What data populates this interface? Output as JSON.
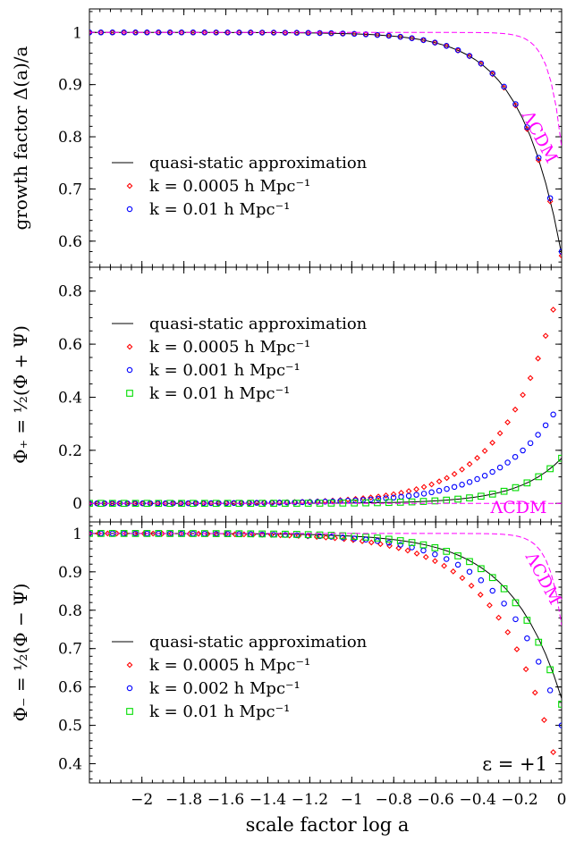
{
  "chart_data": [
    {
      "type": "scatter",
      "panel": "top",
      "ylabel": "growth factor Δ(a)/a",
      "xlim": [
        -2.25,
        0
      ],
      "ylim": [
        0.55,
        1.045
      ],
      "yticks": [
        0.6,
        0.7,
        0.8,
        0.9,
        1
      ],
      "ytick_labels": [
        "0.6",
        "0.7",
        "0.8",
        "0.9",
        "1"
      ],
      "annotation": "ΛCDM",
      "legend": {
        "placement": "lower-left",
        "entries": [
          "quasi-static approximation",
          "k = 0.0005 h Mpc⁻¹",
          "k = 0.01 h Mpc⁻¹"
        ]
      },
      "series": [
        {
          "name": "quasi-static approximation",
          "style": "line",
          "color": "#000000",
          "x0": -2.25,
          "x1": 0,
          "n": 61,
          "v0": 1.0,
          "v1": 0.575,
          "s": 0.22,
          "p": 1.12
        },
        {
          "name": "k = 0.0005 h Mpc⁻¹",
          "style": "diamond",
          "color": "#ff0000",
          "x0": -2.25,
          "x1": 0,
          "n": 42,
          "v0": 1.0,
          "v1": 0.572,
          "s": 0.22,
          "p": 1.12
        },
        {
          "name": "k = 0.01 h Mpc⁻¹",
          "style": "circle",
          "color": "#0000ff",
          "x0": -2.25,
          "x1": 0,
          "n": 42,
          "v0": 1.0,
          "v1": 0.58,
          "s": 0.22,
          "p": 1.12
        },
        {
          "name": "ΛCDM",
          "style": "dashed",
          "color": "#ff00ff",
          "x0": -2.25,
          "x1": 0,
          "n": 90,
          "v0": 1.0,
          "v1": 0.78,
          "s": 0.075,
          "p": 1.25
        }
      ]
    },
    {
      "type": "scatter",
      "panel": "middle",
      "ylabel": "Φ₊ = ½(Φ + Ψ)",
      "xlim": [
        -2.25,
        0
      ],
      "ylim": [
        -0.07,
        0.89
      ],
      "yticks": [
        0,
        0.2,
        0.4,
        0.6,
        0.8
      ],
      "ytick_labels": [
        "0",
        "0.2",
        "0.4",
        "0.6",
        "0.8"
      ],
      "annotation": "ΛCDM",
      "legend": {
        "placement": "upper-left",
        "entries": [
          "quasi-static approximation",
          "k = 0.0005 h Mpc⁻¹",
          "k = 0.001 h Mpc⁻¹",
          "k = 0.01 h Mpc⁻¹"
        ]
      },
      "series": [
        {
          "name": "quasi-static approximation",
          "style": "line",
          "color": "#000000",
          "x0": -2.25,
          "x1": 0,
          "n": 61,
          "v0": 0.0,
          "v1": 0.17,
          "s": 0.25,
          "p": 1.2
        },
        {
          "name": "k = 0.0005 h Mpc⁻¹",
          "style": "diamond",
          "color": "#ff0000",
          "x0": -2.25,
          "x1": -0.04,
          "n": 62,
          "v0": 0.0,
          "v1": 0.73,
          "s": 0.3,
          "p": 1.2
        },
        {
          "name": "k = 0.001 h Mpc⁻¹",
          "style": "circle",
          "color": "#0000ff",
          "x0": -2.25,
          "x1": -0.04,
          "n": 62,
          "v0": 0.0,
          "v1": 0.335,
          "s": 0.35,
          "p": 1.25
        },
        {
          "name": "k = 0.01 h Mpc⁻¹",
          "style": "square",
          "color": "#00dd00",
          "x0": -2.25,
          "x1": 0,
          "n": 42,
          "v0": 0.0,
          "v1": 0.17,
          "s": 0.25,
          "p": 1.2
        },
        {
          "name": "ΛCDM",
          "style": "dashed",
          "color": "#ff00ff",
          "x0": -2.25,
          "x1": 0,
          "n": 2,
          "v0": 0.0,
          "v1": 0.0,
          "s": 0.3,
          "p": 1.0
        }
      ]
    },
    {
      "type": "scatter",
      "panel": "bottom",
      "ylabel": "Φ₋ = ½(Φ − Ψ)",
      "xlabel": "scale factor log a",
      "xlim": [
        -2.25,
        0
      ],
      "ylim": [
        0.35,
        1.03
      ],
      "yticks": [
        0.4,
        0.5,
        0.6,
        0.7,
        0.8,
        0.9,
        1
      ],
      "ytick_labels": [
        "0.4",
        "0.5",
        "0.6",
        "0.7",
        "0.8",
        "0.9",
        "1"
      ],
      "xticks": [
        -2,
        -1.8,
        -1.6,
        -1.4,
        -1.2,
        -1,
        -0.8,
        -0.6,
        -0.4,
        -0.2,
        0
      ],
      "xtick_labels": [
        "−2",
        "−1.8",
        "−1.6",
        "−1.4",
        "−1.2",
        "−1",
        "−0.8",
        "−0.6",
        "−0.4",
        "−0.2",
        "0"
      ],
      "annotation": "ΛCDM",
      "corner_label": "ε = +1",
      "legend": {
        "placement": "lower-left",
        "entries": [
          "quasi-static approximation",
          "k = 0.0005 h Mpc⁻¹",
          "k = 0.002 h Mpc⁻¹",
          "k = 0.01 h Mpc⁻¹"
        ]
      },
      "series": [
        {
          "name": "quasi-static approximation",
          "style": "line",
          "color": "#000000",
          "x0": -2.25,
          "x1": 0,
          "n": 61,
          "v0": 1.0,
          "v1": 0.57,
          "s": 0.28,
          "p": 1.15
        },
        {
          "name": "k = 0.0005 h Mpc⁻¹",
          "style": "diamond",
          "color": "#ff0000",
          "x0": -2.25,
          "x1": -0.04,
          "n": 52,
          "v0": 1.0,
          "v1": 0.43,
          "s": 0.3,
          "p": 1.1
        },
        {
          "name": "k = 0.002 h Mpc⁻¹",
          "style": "circle",
          "color": "#0000ff",
          "x0": -2.25,
          "x1": 0,
          "n": 42,
          "v0": 1.0,
          "v1": 0.5,
          "s": 0.3,
          "p": 1.1
        },
        {
          "name": "k = 0.01 h Mpc⁻¹",
          "style": "square",
          "color": "#00dd00",
          "x0": -2.25,
          "x1": 0,
          "n": 42,
          "v0": 1.0,
          "v1": 0.555,
          "s": 0.28,
          "p": 1.15
        },
        {
          "name": "ΛCDM",
          "style": "dashed",
          "color": "#ff00ff",
          "x0": -2.25,
          "x1": 0,
          "n": 90,
          "v0": 1.0,
          "v1": 0.76,
          "s": 0.075,
          "p": 1.25
        }
      ]
    }
  ]
}
